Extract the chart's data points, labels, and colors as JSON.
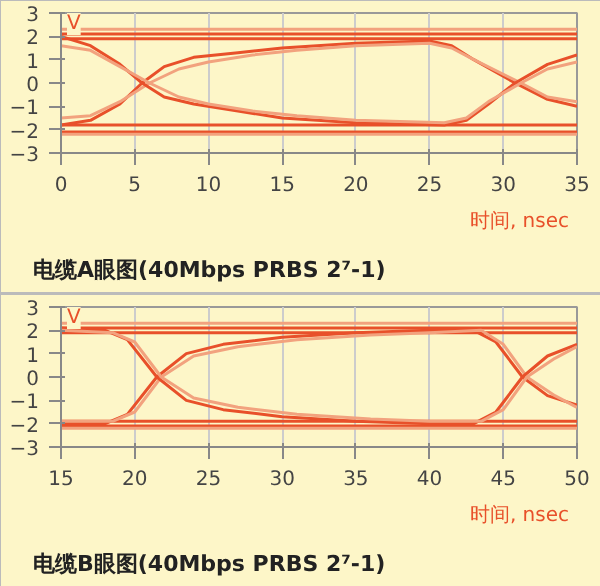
{
  "chart_data": [
    {
      "type": "line",
      "title": "电缆A眼图(40Mbps PRBS 2⁷-1)",
      "xlabel": "时间, nsec",
      "ylabel": "V",
      "xlim": [
        0,
        35
      ],
      "ylim": [
        -3,
        3
      ],
      "xticks": [
        0,
        5,
        10,
        15,
        20,
        25,
        30,
        35
      ],
      "yticks": [
        -3,
        -2,
        -1,
        0,
        1,
        2,
        3
      ],
      "grid": "x",
      "series": [
        {
          "color": "#e8502a",
          "x": [
            0,
            35
          ],
          "values": [
            2.1,
            2.1
          ]
        },
        {
          "color": "#f2a27e",
          "x": [
            0,
            35
          ],
          "values": [
            2.3,
            2.3
          ]
        },
        {
          "color": "#e8502a",
          "x": [
            0,
            35
          ],
          "values": [
            1.9,
            1.9
          ]
        },
        {
          "color": "#e8502a",
          "x": [
            0,
            35
          ],
          "values": [
            -2.1,
            -2.1
          ]
        },
        {
          "color": "#f2a27e",
          "x": [
            0,
            35
          ],
          "values": [
            -2.2,
            -2.2
          ]
        },
        {
          "color": "#e8502a",
          "x": [
            0,
            35
          ],
          "values": [
            -1.8,
            -1.8
          ]
        },
        {
          "color": "#e8502a",
          "x": [
            0,
            2,
            4,
            5.5,
            7,
            9,
            12,
            15,
            20,
            25,
            26.5,
            28,
            30.8,
            33,
            35
          ],
          "values": [
            -1.8,
            -1.6,
            -0.9,
            0,
            0.7,
            1.1,
            1.3,
            1.5,
            1.7,
            1.8,
            1.6,
            1.0,
            0,
            -0.7,
            -1.0
          ]
        },
        {
          "color": "#f2a27e",
          "x": [
            0,
            2,
            4,
            6,
            8,
            10,
            13,
            16,
            20,
            25,
            26.5,
            28,
            31.2,
            33,
            35
          ],
          "values": [
            -1.5,
            -1.4,
            -0.8,
            0,
            0.6,
            0.9,
            1.2,
            1.4,
            1.6,
            1.7,
            1.5,
            1.0,
            0,
            -0.6,
            -0.8
          ]
        },
        {
          "color": "#e8502a",
          "x": [
            0,
            2,
            4,
            5.5,
            7,
            9,
            12,
            15,
            20,
            26,
            27.5,
            29,
            30.8,
            33,
            35
          ],
          "values": [
            2.0,
            1.6,
            0.8,
            0,
            -0.6,
            -0.9,
            -1.2,
            -1.5,
            -1.7,
            -1.8,
            -1.6,
            -0.9,
            0,
            0.8,
            1.2
          ]
        },
        {
          "color": "#f2a27e",
          "x": [
            0,
            2,
            4,
            6,
            8,
            10,
            13,
            16,
            20,
            26,
            27.5,
            29,
            31.2,
            33,
            35
          ],
          "values": [
            1.6,
            1.4,
            0.7,
            0,
            -0.6,
            -0.9,
            -1.2,
            -1.4,
            -1.6,
            -1.7,
            -1.5,
            -0.8,
            0,
            0.6,
            0.9
          ]
        }
      ]
    },
    {
      "type": "line",
      "title": "电缆B眼图(40Mbps PRBS 2⁷-1)",
      "xlabel": "时间, nsec",
      "ylabel": "V",
      "xlim": [
        15,
        50
      ],
      "ylim": [
        -3,
        3
      ],
      "xticks": [
        15,
        20,
        25,
        30,
        35,
        40,
        45,
        50
      ],
      "yticks": [
        -3,
        -2,
        -1,
        0,
        1,
        2,
        3
      ],
      "grid": "x",
      "series": [
        {
          "color": "#e8502a",
          "x": [
            15,
            50
          ],
          "values": [
            2.1,
            2.1
          ]
        },
        {
          "color": "#f2a27e",
          "x": [
            15,
            50
          ],
          "values": [
            2.3,
            2.3
          ]
        },
        {
          "color": "#e8502a",
          "x": [
            15,
            50
          ],
          "values": [
            1.9,
            1.9
          ]
        },
        {
          "color": "#e8502a",
          "x": [
            15,
            50
          ],
          "values": [
            -2.1,
            -2.1
          ]
        },
        {
          "color": "#f2a27e",
          "x": [
            15,
            50
          ],
          "values": [
            -2.2,
            -2.2
          ]
        },
        {
          "color": "#e8502a",
          "x": [
            15,
            50
          ],
          "values": [
            -1.9,
            -1.9
          ]
        },
        {
          "color": "#e8502a",
          "x": [
            15,
            18,
            19.5,
            21.5,
            23.5,
            26,
            30,
            35,
            40,
            43,
            44.5,
            46.3,
            48,
            50
          ],
          "values": [
            -2.0,
            -2.0,
            -1.6,
            0,
            1.0,
            1.4,
            1.7,
            1.9,
            2.0,
            2.0,
            1.5,
            0,
            -0.8,
            -1.2
          ]
        },
        {
          "color": "#f2a27e",
          "x": [
            15,
            18.5,
            20,
            21.8,
            24,
            27,
            31,
            36,
            40,
            43.5,
            45,
            46.6,
            48.5,
            50
          ],
          "values": [
            -1.9,
            -1.9,
            -1.5,
            0,
            0.9,
            1.3,
            1.6,
            1.8,
            1.9,
            2.0,
            1.4,
            0,
            -0.8,
            -1.3
          ]
        },
        {
          "color": "#e8502a",
          "x": [
            15,
            18,
            19.5,
            21.5,
            23.5,
            26,
            30,
            35,
            40,
            43,
            44.5,
            46.3,
            48,
            50
          ],
          "values": [
            2.1,
            2.0,
            1.6,
            0,
            -1.0,
            -1.4,
            -1.7,
            -1.9,
            -2.0,
            -2.0,
            -1.5,
            0,
            0.9,
            1.4
          ]
        },
        {
          "color": "#f2a27e",
          "x": [
            15,
            18.5,
            20,
            21.8,
            24,
            27,
            31,
            36,
            40,
            43.5,
            45,
            46.6,
            48.5,
            50
          ],
          "values": [
            2.0,
            1.9,
            1.5,
            0,
            -0.9,
            -1.3,
            -1.6,
            -1.8,
            -1.9,
            -1.9,
            -1.4,
            0,
            0.8,
            1.3
          ]
        }
      ]
    }
  ]
}
